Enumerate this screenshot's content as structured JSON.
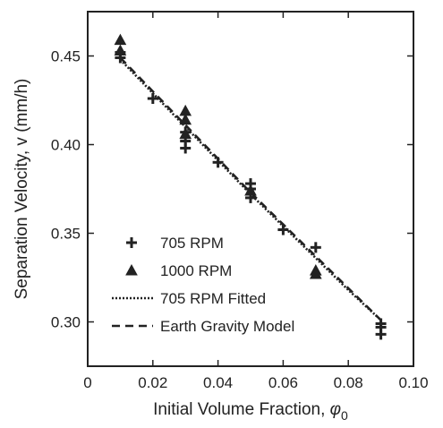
{
  "chart_data": {
    "type": "scatter",
    "xlabel": "Initial Volume Fraction, ",
    "xlabel_symbol": "φ",
    "xlabel_sub": "0",
    "ylabel": "Separation Velocity, v (mm/h)",
    "xlim": [
      0,
      0.1
    ],
    "ylim": [
      0.275,
      0.475
    ],
    "xticks": [
      0,
      0.02,
      0.04,
      0.06,
      0.08,
      0.1
    ],
    "xtick_labels": [
      "0",
      "0.02",
      "0.04",
      "0.06",
      "0.08",
      "0.10"
    ],
    "yticks": [
      0.3,
      0.35,
      0.4,
      0.45
    ],
    "ytick_labels": [
      "0.30",
      "0.35",
      "0.40",
      "0.45"
    ],
    "grid": false,
    "legend_position": "bottom-left",
    "series": [
      {
        "name": "705 RPM",
        "marker": "plus",
        "x": [
          0.01,
          0.01,
          0.02,
          0.03,
          0.03,
          0.03,
          0.04,
          0.05,
          0.05,
          0.05,
          0.06,
          0.07,
          0.09,
          0.09,
          0.09
        ],
        "y": [
          0.449,
          0.452,
          0.426,
          0.398,
          0.402,
          0.407,
          0.39,
          0.37,
          0.375,
          0.378,
          0.352,
          0.342,
          0.293,
          0.297,
          0.299
        ]
      },
      {
        "name": "1000 RPM",
        "marker": "triangle",
        "x": [
          0.01,
          0.01,
          0.03,
          0.03,
          0.03,
          0.05,
          0.07,
          0.07
        ],
        "y": [
          0.459,
          0.453,
          0.419,
          0.414,
          0.406,
          0.374,
          0.327,
          0.329
        ],
        "color": "#222222"
      },
      {
        "name": "705 RPM Fitted",
        "line": "dotted",
        "x": [
          0.01,
          0.02,
          0.03,
          0.04,
          0.05,
          0.06,
          0.07,
          0.08,
          0.09
        ],
        "y": [
          0.448,
          0.429,
          0.41,
          0.391,
          0.372,
          0.354,
          0.336,
          0.318,
          0.301
        ]
      },
      {
        "name": "Earth Gravity Model",
        "line": "dashed",
        "x": [
          0.01,
          0.02,
          0.03,
          0.04,
          0.05,
          0.06,
          0.07,
          0.08,
          0.09
        ],
        "y": [
          0.449,
          0.43,
          0.411,
          0.392,
          0.373,
          0.355,
          0.337,
          0.319,
          0.301
        ]
      }
    ]
  },
  "colors": {
    "ink": "#222222",
    "background": "#ffffff"
  }
}
